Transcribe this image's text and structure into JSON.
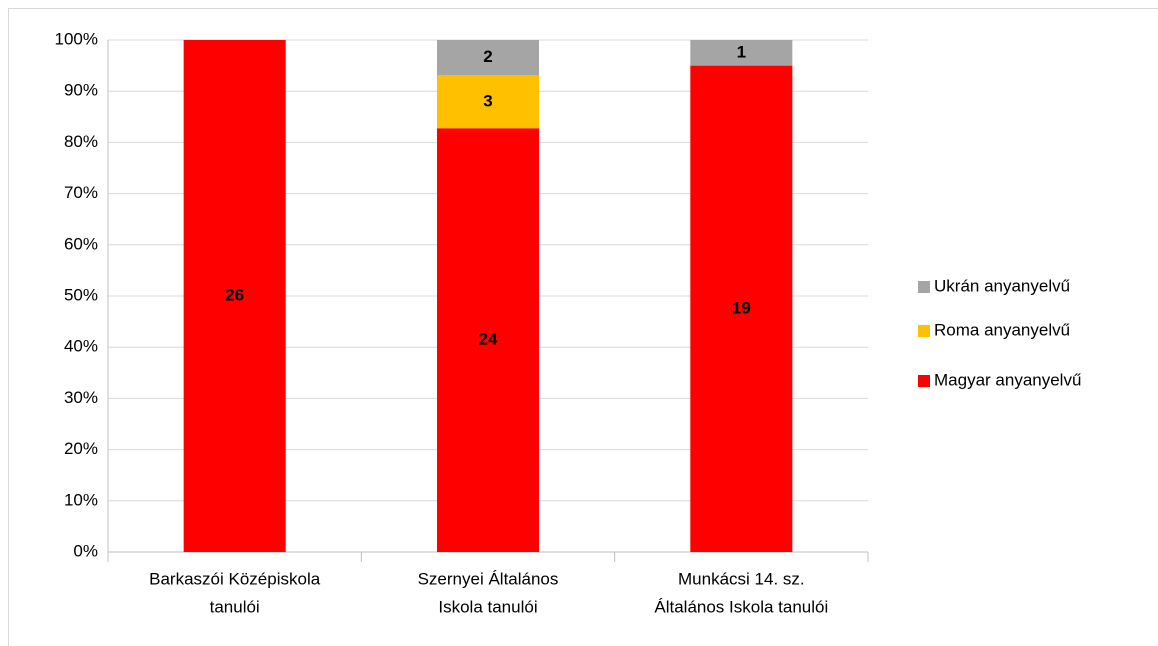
{
  "chart_data": {
    "type": "bar",
    "stack": "percent",
    "categories": [
      [
        "Barkaszói Középiskola",
        "tanulói"
      ],
      [
        "Szernyei Általános",
        "Iskola tanulói"
      ],
      [
        "Munkácsi 14. sz.",
        "Általános Iskola tanulói"
      ]
    ],
    "series": [
      {
        "name": "Magyar anyanyelvű",
        "color": "#ff0000",
        "values": [
          26,
          24,
          19
        ]
      },
      {
        "name": "Roma anyanyelvű",
        "color": "#ffc000",
        "values": [
          null,
          3,
          null
        ]
      },
      {
        "name": "Ukrán anyanyelvű",
        "color": "#a5a5a5",
        "values": [
          null,
          2,
          1
        ]
      }
    ],
    "ylim": [
      0,
      100
    ],
    "yticks": [
      {
        "value": 0,
        "label": "0%"
      },
      {
        "value": 10,
        "label": "10%"
      },
      {
        "value": 20,
        "label": "20%"
      },
      {
        "value": 30,
        "label": "30%"
      },
      {
        "value": 40,
        "label": "40%"
      },
      {
        "value": 50,
        "label": "50%"
      },
      {
        "value": 60,
        "label": "60%"
      },
      {
        "value": 70,
        "label": "70%"
      },
      {
        "value": 80,
        "label": "80%"
      },
      {
        "value": 90,
        "label": "90%"
      },
      {
        "value": 100,
        "label": "100%"
      }
    ],
    "grid": true,
    "legend": "right"
  }
}
